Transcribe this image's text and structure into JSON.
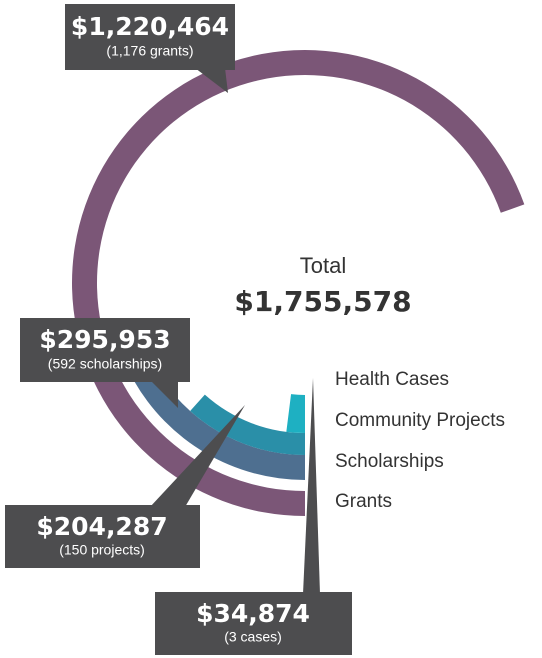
{
  "chart_data": {
    "type": "radial-bar",
    "total_label": "Total",
    "total": 1755578,
    "total_value_label": "$1,755,578",
    "categories": [
      "Grants",
      "Scholarships",
      "Community Projects",
      "Health Cases"
    ],
    "values": [
      1220464,
      295953,
      204287,
      34874
    ],
    "value_labels": [
      "$1,220,464",
      "$295,953",
      "$204,287",
      "$34,874"
    ],
    "details": [
      "(1,176 grants)",
      "(592 scholarships)",
      "(150 projects)",
      "(3 cases)"
    ],
    "colors": [
      "#7b5677",
      "#4e6f90",
      "#2a8fa8",
      "#1eb0c2"
    ]
  }
}
